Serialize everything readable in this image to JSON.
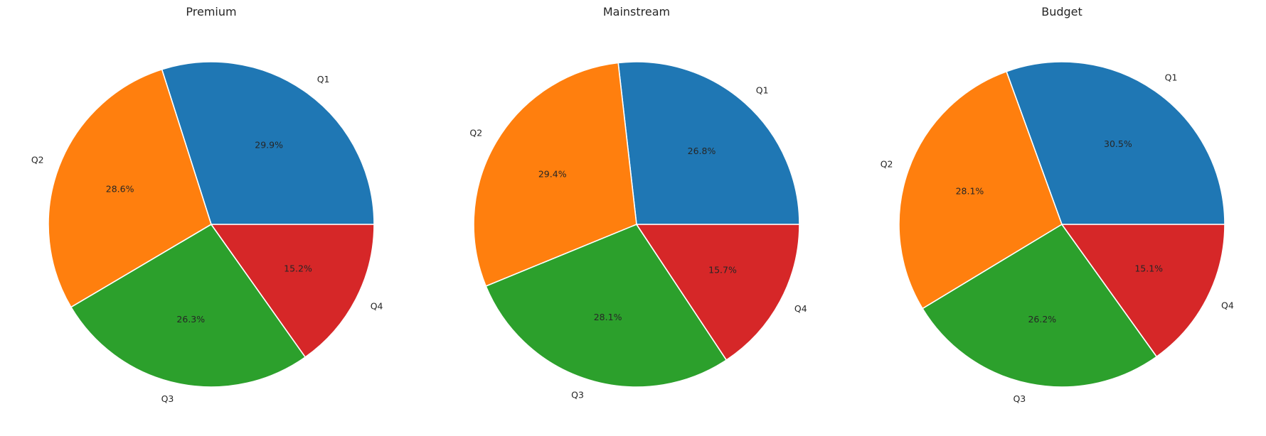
{
  "chart_data": [
    {
      "type": "pie",
      "title": "Premium",
      "categories": [
        "Q1",
        "Q2",
        "Q3",
        "Q4"
      ],
      "values": [
        29.9,
        28.6,
        26.3,
        15.2
      ],
      "value_labels": [
        "29.9%",
        "28.6%",
        "26.3%",
        "15.2%"
      ],
      "start_angle_deg": 0,
      "direction": "counterclockwise",
      "colors": [
        "#1f77b4",
        "#ff7f0e",
        "#2ca02c",
        "#d62728"
      ]
    },
    {
      "type": "pie",
      "title": "Mainstream",
      "categories": [
        "Q1",
        "Q2",
        "Q3",
        "Q4"
      ],
      "values": [
        26.8,
        29.4,
        28.1,
        15.7
      ],
      "value_labels": [
        "26.8%",
        "29.4%",
        "28.1%",
        "15.7%"
      ],
      "start_angle_deg": 0,
      "direction": "counterclockwise",
      "colors": [
        "#1f77b4",
        "#ff7f0e",
        "#2ca02c",
        "#d62728"
      ]
    },
    {
      "type": "pie",
      "title": "Budget",
      "categories": [
        "Q1",
        "Q2",
        "Q3",
        "Q4"
      ],
      "values": [
        30.5,
        28.1,
        26.2,
        15.1
      ],
      "value_labels": [
        "30.5%",
        "28.1%",
        "26.2%",
        "15.1%"
      ],
      "start_angle_deg": 0,
      "direction": "counterclockwise",
      "colors": [
        "#1f77b4",
        "#ff7f0e",
        "#2ca02c",
        "#d62728"
      ]
    }
  ]
}
